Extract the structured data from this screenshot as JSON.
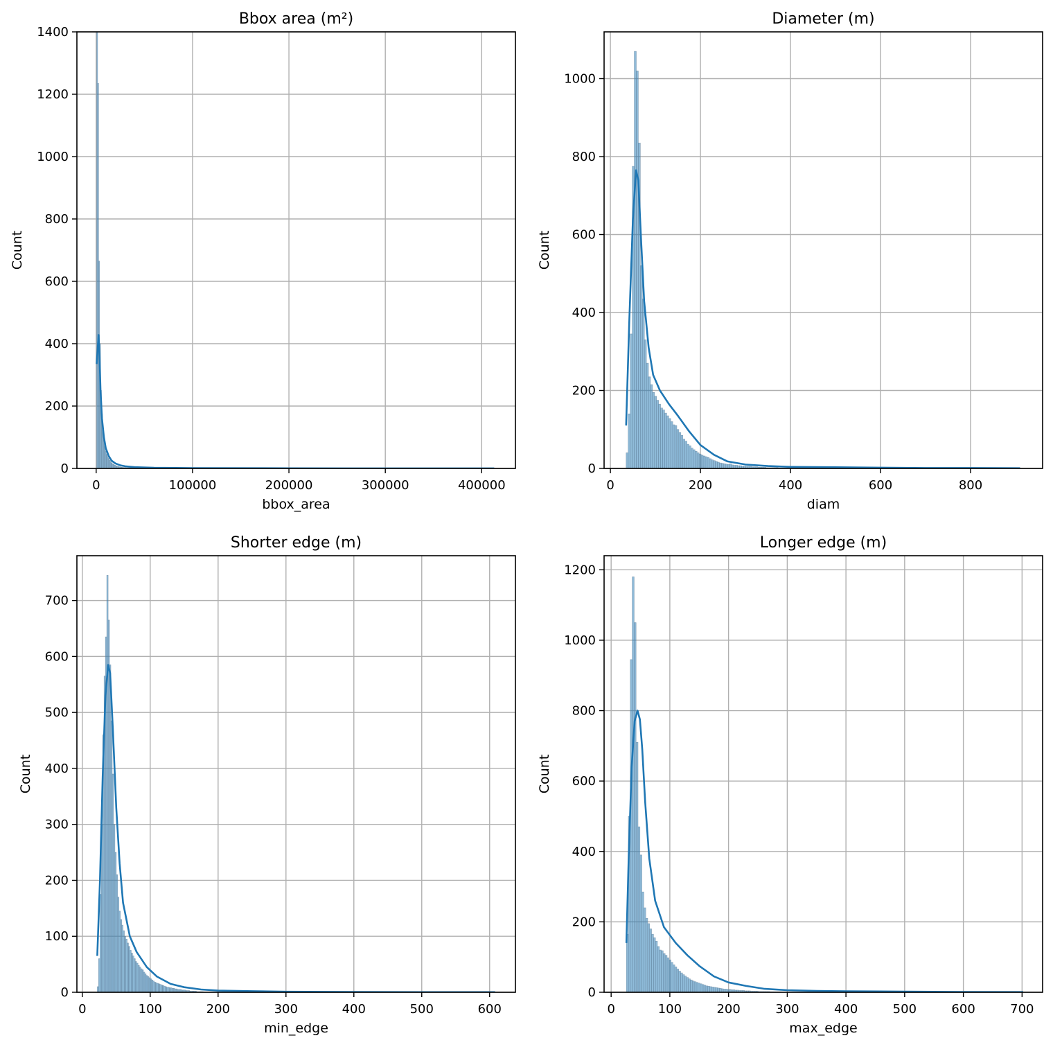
{
  "chart_data": [
    {
      "type": "histogram",
      "title": "Bbox area (m²)",
      "xlabel": "bbox_area",
      "ylabel": "Count",
      "xlim": [
        -20000,
        435000
      ],
      "ylim": [
        0,
        1400
      ],
      "xticks": [
        0,
        100000,
        200000,
        300000,
        400000
      ],
      "xtick_labels": [
        "0",
        "100000",
        "200000",
        "300000",
        "400000"
      ],
      "yticks": [
        0,
        200,
        400,
        600,
        800,
        1000,
        1200,
        1400
      ],
      "ytick_labels": [
        "0",
        "200",
        "400",
        "600",
        "800",
        "1000",
        "1200",
        "1400"
      ],
      "grid": true,
      "bin_start": 500,
      "bin_width": 1000,
      "counts": [
        1400,
        1235,
        665,
        400,
        250,
        175,
        115,
        90,
        70,
        55,
        45,
        38,
        32,
        26,
        22,
        18,
        15,
        13,
        11,
        10,
        8,
        7,
        6,
        5,
        5,
        4,
        4,
        3,
        3,
        3,
        2,
        2,
        2,
        2,
        2,
        2,
        1,
        1,
        1,
        1
      ],
      "kde": {
        "x": [
          500,
          1500,
          2500,
          3500,
          4500,
          6000,
          8000,
          10000,
          13000,
          16000,
          20000,
          25000,
          30000,
          40000,
          60000,
          100000,
          200000,
          300000,
          413000
        ],
        "y": [
          335,
          380,
          428,
          360,
          250,
          160,
          100,
          65,
          40,
          25,
          16,
          10,
          7,
          4,
          2,
          1,
          0.5,
          0.3,
          0.2
        ]
      }
    },
    {
      "type": "histogram",
      "title": "Diameter (m)",
      "xlabel": "diam",
      "ylabel": "Count",
      "xlim": [
        -14,
        960
      ],
      "ylim": [
        0,
        1120
      ],
      "xticks": [
        0,
        200,
        400,
        600,
        800
      ],
      "xtick_labels": [
        "0",
        "200",
        "400",
        "600",
        "800"
      ],
      "yticks": [
        0,
        200,
        400,
        600,
        800,
        1000
      ],
      "ytick_labels": [
        "0",
        "200",
        "400",
        "600",
        "800",
        "1000"
      ],
      "grid": true,
      "bin_start": 35,
      "bin_width": 4.5,
      "counts": [
        40,
        140,
        345,
        775,
        1070,
        1020,
        835,
        520,
        435,
        330,
        270,
        235,
        215,
        195,
        185,
        175,
        165,
        155,
        150,
        142,
        135,
        128,
        120,
        112,
        110,
        100,
        92,
        85,
        75,
        70,
        62,
        58,
        52,
        48,
        44,
        40,
        37,
        34,
        32,
        30,
        28,
        25,
        22,
        20,
        18,
        16,
        14,
        13,
        12,
        11,
        10,
        12,
        9,
        8,
        8,
        7,
        7,
        6,
        6,
        5,
        5,
        5,
        4,
        4,
        4,
        3,
        3,
        3,
        3,
        2,
        2,
        2,
        2,
        2,
        2,
        1,
        1,
        1,
        1,
        1
      ],
      "kde": {
        "x": [
          35,
          42,
          50,
          57,
          62,
          68,
          75,
          85,
          95,
          110,
          130,
          150,
          175,
          200,
          230,
          260,
          300,
          350,
          400,
          500,
          600,
          700,
          800,
          910
        ],
        "y": [
          110,
          380,
          640,
          765,
          740,
          590,
          430,
          310,
          240,
          200,
          165,
          135,
          95,
          60,
          35,
          18,
          10,
          6,
          4,
          3,
          2,
          1,
          1,
          0.5
        ]
      }
    },
    {
      "type": "histogram",
      "title": "Shorter edge (m)",
      "xlabel": "min_edge",
      "ylabel": "Count",
      "xlim": [
        -8,
        638
      ],
      "ylim": [
        0,
        780
      ],
      "xticks": [
        0,
        100,
        200,
        300,
        400,
        500,
        600
      ],
      "xtick_labels": [
        "0",
        "100",
        "200",
        "300",
        "400",
        "500",
        "600"
      ],
      "yticks": [
        0,
        100,
        200,
        300,
        400,
        500,
        600,
        700
      ],
      "ytick_labels": [
        "0",
        "100",
        "200",
        "300",
        "400",
        "500",
        "600",
        "700"
      ],
      "grid": true,
      "bin_start": 22,
      "bin_width": 2,
      "counts": [
        10,
        60,
        175,
        300,
        460,
        565,
        635,
        745,
        665,
        585,
        485,
        390,
        300,
        250,
        210,
        170,
        145,
        130,
        120,
        110,
        100,
        95,
        88,
        82,
        75,
        70,
        65,
        60,
        55,
        52,
        48,
        45,
        42,
        40,
        36,
        33,
        30,
        28,
        26,
        24,
        22,
        20,
        18,
        17,
        16,
        15,
        14,
        13,
        12,
        11,
        10,
        9,
        9,
        8,
        8,
        7,
        7,
        6,
        6,
        5,
        5,
        5,
        4,
        4,
        4,
        3,
        3,
        3,
        2,
        2,
        2,
        2,
        2,
        1,
        1,
        1,
        1,
        1
      ],
      "kde": {
        "x": [
          22,
          26,
          30,
          34,
          38,
          41,
          45,
          50,
          55,
          60,
          70,
          80,
          95,
          110,
          130,
          150,
          175,
          200,
          250,
          300,
          400,
          500,
          608
        ],
        "y": [
          65,
          200,
          385,
          530,
          585,
          570,
          470,
          330,
          230,
          160,
          100,
          72,
          45,
          28,
          15,
          9,
          5,
          3,
          2,
          1,
          0.5,
          0.3,
          0.2
        ]
      }
    },
    {
      "type": "histogram",
      "title": "Longer edge (m)",
      "xlabel": "max_edge",
      "ylabel": "Count",
      "xlim": [
        -12,
        735
      ],
      "ylim": [
        0,
        1240
      ],
      "xticks": [
        0,
        100,
        200,
        300,
        400,
        500,
        600,
        700
      ],
      "xtick_labels": [
        "0",
        "100",
        "200",
        "300",
        "400",
        "500",
        "600",
        "700"
      ],
      "yticks": [
        0,
        200,
        400,
        600,
        800,
        1000,
        1200
      ],
      "ytick_labels": [
        "0",
        "200",
        "400",
        "600",
        "800",
        "1000",
        "1200"
      ],
      "grid": true,
      "bin_start": 26,
      "bin_width": 3.3,
      "counts": [
        165,
        500,
        945,
        1180,
        1050,
        710,
        470,
        390,
        285,
        240,
        210,
        195,
        180,
        165,
        155,
        145,
        130,
        120,
        118,
        110,
        105,
        98,
        92,
        85,
        78,
        72,
        66,
        60,
        55,
        50,
        46,
        42,
        38,
        35,
        32,
        30,
        28,
        26,
        24,
        22,
        20,
        18,
        17,
        16,
        15,
        14,
        13,
        12,
        11,
        10,
        9,
        9,
        8,
        8,
        7,
        7,
        6,
        6,
        5,
        5,
        5,
        4,
        4,
        4,
        3,
        3,
        3,
        3,
        2,
        2,
        2,
        2,
        2,
        2,
        1,
        1,
        1,
        1,
        1,
        1
      ],
      "kde": {
        "x": [
          26,
          30,
          35,
          40,
          45,
          49,
          53,
          58,
          65,
          75,
          90,
          110,
          130,
          150,
          175,
          200,
          230,
          260,
          300,
          350,
          400,
          500,
          600,
          702
        ],
        "y": [
          140,
          390,
          640,
          770,
          800,
          775,
          690,
          540,
          380,
          260,
          185,
          140,
          105,
          75,
          45,
          28,
          18,
          10,
          6,
          4,
          3,
          2,
          1,
          0.5
        ]
      }
    }
  ]
}
